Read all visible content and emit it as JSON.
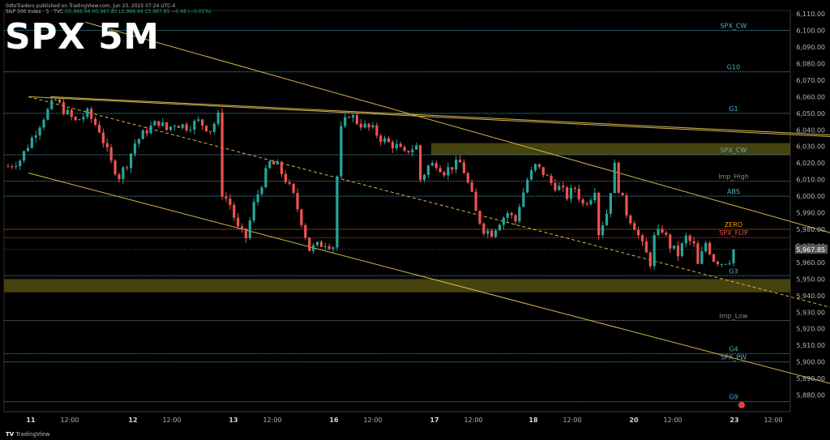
{
  "header": {
    "publisher_line": "0dteTraders published on TradingView.com, Jun 23, 2025 07:24 UTC-4",
    "symbol_line": "S&P 500 Index · 5 · TVC",
    "ohlc_line": "O5,966.94 H5,967.85 L5,966.94 C5,967.85 −0.48 (−0.01%)"
  },
  "title_overlay": "SPX 5M",
  "footer": {
    "logo_text": "TV",
    "brand": "TradingView"
  },
  "last_price_tag": "5,967.85",
  "colors": {
    "background": "#000000",
    "up_candle": "#26a69a",
    "down_candle": "#ef5350",
    "level_line": "#4fb3c8",
    "trend_line": "#d4b64a",
    "zone_fill": "#4f4a12",
    "zero_label": "#ff9800",
    "flip_label": "#f04a4a"
  },
  "chart_data": {
    "type": "candlestick",
    "ylim": [
      5870,
      6112
    ],
    "y_ticks": [
      "6,110.00",
      "6,100.00",
      "6,090.00",
      "6,080.00",
      "6,070.00",
      "6,060.00",
      "6,050.00",
      "6,040.00",
      "6,030.00",
      "6,020.00",
      "6,010.00",
      "6,000.00",
      "5,990.00",
      "5,980.00",
      "5,970.00",
      "5,960.00",
      "5,950.00",
      "5,940.00",
      "5,930.00",
      "5,920.00",
      "5,910.00",
      "5,900.00",
      "5,890.00",
      "5,880.00"
    ],
    "x_ticks": [
      "11",
      "12:00",
      "12",
      "12:00",
      "13",
      "12:00",
      "16",
      "12:00",
      "17",
      "12:00",
      "18",
      "12:00",
      "20",
      "12:00",
      "23",
      "12:00"
    ],
    "last_price": 5967.85,
    "levels": [
      {
        "name": "SPX_CW",
        "price": 6100,
        "color": "#4fb3c8"
      },
      {
        "name": "G10",
        "price": 6075,
        "color": "#4fb3c8"
      },
      {
        "name": "G1",
        "price": 6050,
        "color": "#4fb3c8"
      },
      {
        "name": "SPX_CW",
        "price": 6025,
        "color": "#4fb3c8"
      },
      {
        "name": "Imp_High",
        "price": 6009,
        "color": "#8a8a8a"
      },
      {
        "name": "ABS",
        "price": 6000,
        "color": "#4fb3c8"
      },
      {
        "name": "ZERO",
        "price": 5980,
        "color": "#ff9800"
      },
      {
        "name": "SPX_FLIP",
        "price": 5975,
        "color": "#f04a4a"
      },
      {
        "name": "G3",
        "price": 5952,
        "color": "#4fb3c8"
      },
      {
        "name": "Imp_Low",
        "price": 5925,
        "color": "#8a8a8a"
      },
      {
        "name": "G4",
        "price": 5905,
        "color": "#4fb3c8"
      },
      {
        "name": "SPX_PW",
        "price": 5900,
        "color": "#4fb3c8"
      },
      {
        "name": "G9",
        "price": 5876,
        "color": "#4fb3c8"
      }
    ],
    "zones": [
      {
        "from": 6025,
        "to": 6032
      },
      {
        "from": 5942,
        "to": 5950
      }
    ],
    "close_path": [
      [
        0,
        6018
      ],
      [
        3,
        6022
      ],
      [
        6,
        6035
      ],
      [
        9,
        6048
      ],
      [
        11,
        6055
      ],
      [
        12,
        6058
      ],
      [
        14,
        6052
      ],
      [
        17,
        6045
      ],
      [
        20,
        6050
      ],
      [
        23,
        6040
      ],
      [
        26,
        6020
      ],
      [
        28,
        6012
      ],
      [
        30,
        6020
      ],
      [
        32,
        6032
      ],
      [
        35,
        6040
      ],
      [
        38,
        6045
      ],
      [
        40,
        6040
      ],
      [
        42,
        6044
      ],
      [
        45,
        6042
      ],
      [
        48,
        6045
      ],
      [
        51,
        6040
      ],
      [
        53,
        6048
      ],
      [
        54,
        6002
      ],
      [
        56,
        5995
      ],
      [
        58,
        5980
      ],
      [
        60,
        5975
      ],
      [
        62,
        5995
      ],
      [
        64,
        6008
      ],
      [
        66,
        6020
      ],
      [
        68,
        6018
      ],
      [
        70,
        6010
      ],
      [
        72,
        6000
      ],
      [
        74,
        5985
      ],
      [
        76,
        5968
      ],
      [
        78,
        5970
      ],
      [
        80,
        5972
      ],
      [
        82,
        5970
      ],
      [
        83,
        6012
      ],
      [
        84,
        6040
      ],
      [
        86,
        6050
      ],
      [
        88,
        6045
      ],
      [
        90,
        6042
      ],
      [
        92,
        6040
      ],
      [
        94,
        6035
      ],
      [
        96,
        6032
      ],
      [
        98,
        6030
      ],
      [
        100,
        6025
      ],
      [
        101,
        6028
      ],
      [
        103,
        6030
      ],
      [
        104,
        6010
      ],
      [
        106,
        6018
      ],
      [
        108,
        6020
      ],
      [
        110,
        6015
      ],
      [
        112,
        6018
      ],
      [
        114,
        6020
      ],
      [
        115,
        6015
      ],
      [
        117,
        6000
      ],
      [
        118,
        5990
      ],
      [
        120,
        5980
      ],
      [
        122,
        5978
      ],
      [
        124,
        5985
      ],
      [
        126,
        5990
      ],
      [
        128,
        5985
      ],
      [
        129,
        5995
      ],
      [
        131,
        6010
      ],
      [
        133,
        6018
      ],
      [
        135,
        6014
      ],
      [
        137,
        6008
      ],
      [
        139,
        6005
      ],
      [
        141,
        6000
      ],
      [
        143,
        6005
      ],
      [
        145,
        5995
      ],
      [
        147,
        6000
      ],
      [
        148,
        6005
      ],
      [
        149,
        5978
      ],
      [
        151,
        5990
      ],
      [
        153,
        6018
      ],
      [
        154,
        6005
      ],
      [
        156,
        5990
      ],
      [
        158,
        5982
      ],
      [
        160,
        5970
      ],
      [
        162,
        5960
      ],
      [
        163,
        5975
      ],
      [
        165,
        5980
      ],
      [
        167,
        5970
      ],
      [
        169,
        5965
      ],
      [
        171,
        5975
      ],
      [
        173,
        5970
      ],
      [
        174,
        5958
      ],
      [
        176,
        5972
      ],
      [
        178,
        5962
      ],
      [
        180,
        5960
      ],
      [
        182,
        5962
      ],
      [
        183,
        5967.85
      ]
    ]
  }
}
